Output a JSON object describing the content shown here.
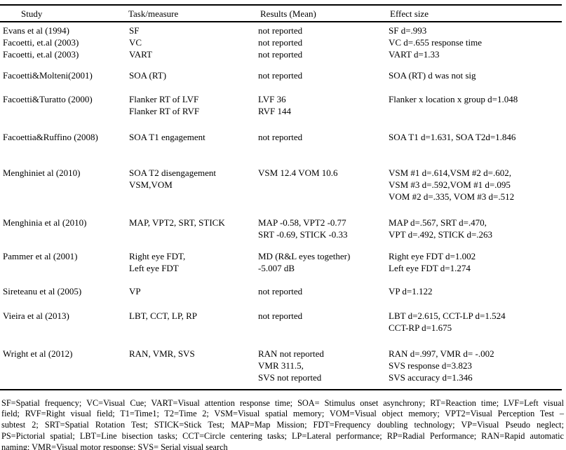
{
  "colors": {
    "text": "#000000",
    "background": "#ffffff",
    "rule": "#000000"
  },
  "table": {
    "header": {
      "columns": [
        "Study",
        "Task/measure",
        "Results (Mean)",
        "Effect size"
      ]
    },
    "rows": [
      {
        "study": "Evans et al (1994)",
        "task": [
          "SF"
        ],
        "results": [
          "not reported"
        ],
        "effect": [
          "SF d=.993"
        ]
      },
      {
        "study": "Facoetti, et.al (2003)",
        "task": [
          "VC"
        ],
        "results": [
          "not reported"
        ],
        "effect": [
          "VC d=.655 response time"
        ]
      },
      {
        "study": "Facoetti, et.al (2003)",
        "task": [
          "VART"
        ],
        "results": [
          "not reported"
        ],
        "effect": [
          "VART d=1.33"
        ]
      },
      {
        "study": "Facoetti&Molteni(2001)",
        "task": [
          "SOA (RT)"
        ],
        "results": [
          "not reported"
        ],
        "effect": [
          "SOA (RT) d was not sig"
        ]
      },
      {
        "study": "Facoetti&Turatto (2000)",
        "task": [
          "Flanker RT of LVF",
          "Flanker RT of RVF"
        ],
        "results": [
          "LVF 36",
          "RVF 144"
        ],
        "effect": [
          "Flanker x location x group d=1.048"
        ]
      },
      {
        "study": "Facoettia&Ruffino (2008)",
        "task": [
          "SOA T1 engagement"
        ],
        "results": [
          "not reported"
        ],
        "effect": [
          "SOA T1 d=1.631, SOA T2d=1.846"
        ]
      },
      {
        "study": "Menghiniet al (2010)",
        "task": [
          "SOA T2 disengagement",
          "VSM,VOM"
        ],
        "results": [
          "VSM 12.4 VOM 10.6"
        ],
        "effect": [
          "VSM #1 d=.614,VSM #2 d=.602,",
          "VSM #3 d=.592,VOM #1 d=.095",
          "VOM #2 d=.335, VOM #3 d=.512"
        ]
      },
      {
        "study": "Menghinia et al (2010)",
        "task": [
          "MAP, VPT2, SRT, STICK"
        ],
        "results": [
          "MAP -0.58, VPT2 -0.77",
          "SRT -0.69, STICK -0.33"
        ],
        "effect": [
          "MAP d=.567, SRT d=.470,",
          "VPT d=.492, STICK d=.263"
        ]
      },
      {
        "study": "Pammer et al (2001)",
        "task": [
          "Right eye FDT,",
          "Left eye FDT"
        ],
        "results": [
          "MD (R&L eyes together)",
          "-5.007 dB"
        ],
        "effect": [
          "Right eye FDT d=1.002",
          "Left eye FDT d=1.274"
        ]
      },
      {
        "study": "Sireteanu et al (2005)",
        "task": [
          "VP"
        ],
        "results": [
          "not reported"
        ],
        "effect": [
          "VP d=1.122"
        ]
      },
      {
        "study": "Vieira et al (2013)",
        "task": [
          "LBT, CCT, LP, RP"
        ],
        "results": [
          "not reported"
        ],
        "effect": [
          "LBT d=2.615, CCT-LP d=1.524",
          "CCT-RP d=1.675"
        ]
      },
      {
        "study": "Wright et al (2012)",
        "task": [
          "RAN, VMR, SVS"
        ],
        "results": [
          "RAN not reported",
          "VMR 311.5,",
          "SVS not reported"
        ],
        "effect": [
          "RAN d=.997, VMR d= -.002",
          "SVS response d=3.823",
          "SVS accuracy d=1.346"
        ]
      }
    ]
  },
  "footnote": {
    "lines": [
      "SF=Spatial frequency; VC=Visual Cue; VART=Visual attention response time; SOA= Stimulus onset asynchrony; RT=Reaction time; LVF=Left visual",
      "field; RVF=Right visual field; T1=Time1; T2=Time 2; VSM=Visual spatial memory; VOM=Visual object memory; VPT2=Visual Perception Test –",
      "subtest 2; SRT=Spatial Rotation Test; STICK=Stick Test; MAP=Map Mission; FDT=Frequency doubling technology; VP=Visual Pseudo neglect;",
      "PS=Pictorial spatial; LBT=Line bisection tasks; CCT=Circle centering tasks; LP=Lateral performance; RP=Radial Performance; RAN=Rapid automatic",
      "naming; VMR=Visual motor response; SVS= Serial visual search"
    ]
  }
}
